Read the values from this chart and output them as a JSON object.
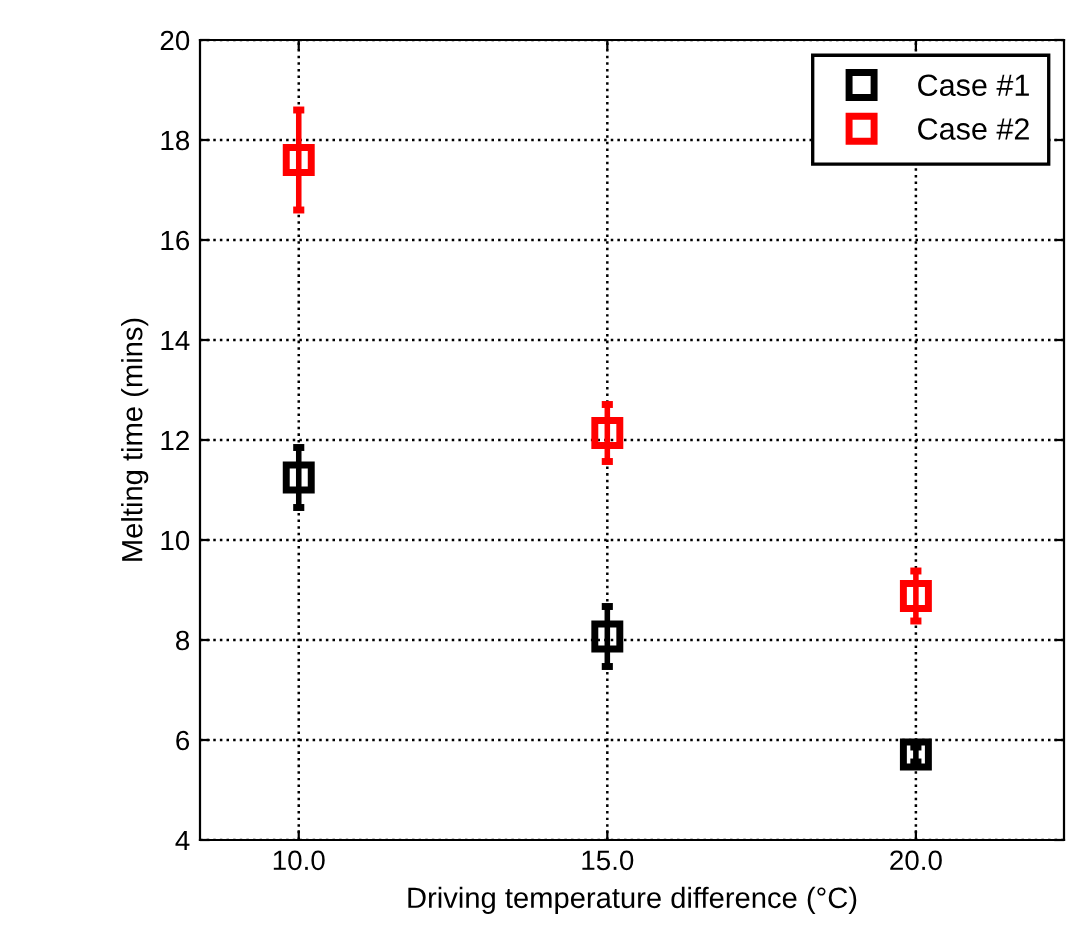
{
  "chart_data": {
    "type": "scatter",
    "xlabel": "Driving temperature difference (°C)",
    "ylabel": "Melting time (mins)",
    "x": [
      10,
      15,
      20
    ],
    "xlim": [
      8.4,
      22.4
    ],
    "xticks": [
      {
        "value": 10,
        "label": "10.0"
      },
      {
        "value": 15,
        "label": "15.0"
      },
      {
        "value": 20,
        "label": "20.0"
      }
    ],
    "ylim": [
      4,
      20
    ],
    "yticks": [
      4,
      6,
      8,
      10,
      12,
      14,
      16,
      18,
      20
    ],
    "series": [
      {
        "name": "Case #1",
        "color": "#000000",
        "values": [
          11.25,
          8.07,
          5.71
        ],
        "errors": [
          0.6,
          0.6,
          0.15
        ]
      },
      {
        "name": "Case #2",
        "color": "#ff0000",
        "values": [
          17.6,
          12.14,
          8.88
        ],
        "errors": [
          1.0,
          0.57,
          0.5
        ]
      }
    ],
    "marker": "square",
    "grid": true,
    "legend": "top right"
  }
}
